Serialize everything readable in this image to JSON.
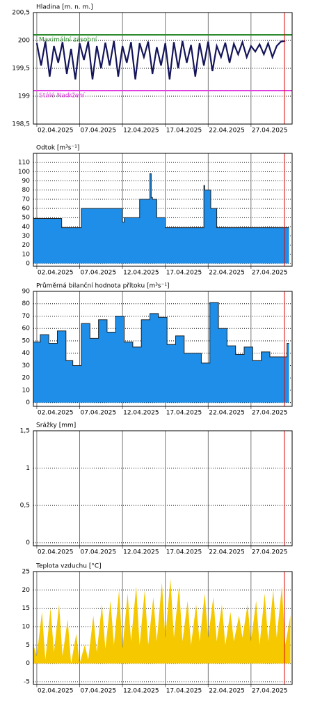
{
  "chart_data": [
    {
      "type": "line",
      "title": "Hladina [m. n. m.]",
      "color": "#14145a",
      "x": [
        2,
        2.5,
        3,
        3.5,
        4,
        4.5,
        5,
        5.5,
        6,
        6.5,
        7,
        7.5,
        8,
        8.5,
        9,
        9.5,
        10,
        10.5,
        11,
        11.5,
        12,
        12.5,
        13,
        13.5,
        14,
        14.5,
        15,
        15.5,
        16,
        16.5,
        17,
        17.5,
        18,
        18.5,
        19,
        19.5,
        20,
        20.5,
        21,
        21.5,
        22,
        22.5,
        23,
        23.5,
        24,
        24.5,
        25,
        25.5,
        26,
        26.5,
        27,
        27.5,
        28,
        28.5,
        29,
        29.5,
        30,
        30.5,
        31
      ],
      "values": [
        199.95,
        199.55,
        199.98,
        199.35,
        199.9,
        199.6,
        199.97,
        199.4,
        199.85,
        199.3,
        199.95,
        199.65,
        199.98,
        199.3,
        199.9,
        199.5,
        199.96,
        199.55,
        199.99,
        199.35,
        199.9,
        199.6,
        199.97,
        199.3,
        199.95,
        199.7,
        199.98,
        199.4,
        199.88,
        199.55,
        199.95,
        199.3,
        199.97,
        199.5,
        199.99,
        199.6,
        199.92,
        199.35,
        199.95,
        199.55,
        199.98,
        199.45,
        199.9,
        199.7,
        199.96,
        199.6,
        199.94,
        199.75,
        199.97,
        199.7,
        199.9,
        199.8,
        199.93,
        199.75,
        199.95,
        199.7,
        199.9,
        199.98,
        199.99
      ],
      "reference_lines": [
        {
          "value": 200.1,
          "label": "Maximální zásobní",
          "color": "#2e8b2e"
        },
        {
          "value": 199.1,
          "label": "Stálé Nadržení",
          "color": "#e040e0"
        }
      ],
      "xlim": [
        1.6,
        31.8
      ],
      "xticks": [
        {
          "value": 2,
          "label": "02.04.2025"
        },
        {
          "value": 7,
          "label": "07.04.2025"
        },
        {
          "value": 12,
          "label": "12.04.2025"
        },
        {
          "value": 17,
          "label": "17.04.2025"
        },
        {
          "value": 22,
          "label": "22.04.2025"
        },
        {
          "value": 27,
          "label": "27.04.2025"
        }
      ],
      "ylim": [
        198.5,
        200.5
      ],
      "yticks": [
        {
          "value": 198.5,
          "label": "198,5"
        },
        199,
        {
          "value": 199.5,
          "label": "199,5"
        },
        200,
        {
          "value": 200.5,
          "label": "200,5"
        }
      ],
      "grid": true,
      "marker_x": 30.9,
      "marker_color": "#e00000"
    },
    {
      "type": "step",
      "title": "Odtok [m³s⁻¹]",
      "color": "#1e8ee8",
      "x": [
        1.6,
        4.9,
        7.2,
        12,
        12.2,
        14,
        15.2,
        15.35,
        15.5,
        16,
        17,
        21.3,
        21.5,
        21.6,
        22.3,
        23,
        31.2
      ],
      "values": [
        49,
        39,
        60,
        45,
        50,
        70,
        98,
        72,
        70,
        50,
        39,
        39,
        85,
        80,
        60,
        39,
        39
      ],
      "xlim": [
        1.6,
        31.8
      ],
      "xticks": [
        {
          "value": 2,
          "label": "02.04.2025"
        },
        {
          "value": 7,
          "label": "07.04.2025"
        },
        {
          "value": 12,
          "label": "12.04.2025"
        },
        {
          "value": 17,
          "label": "17.04.2025"
        },
        {
          "value": 22,
          "label": "22.04.2025"
        },
        {
          "value": 27,
          "label": "27.04.2025"
        }
      ],
      "ylim": [
        -3,
        120
      ],
      "yticks": [
        0,
        10,
        20,
        30,
        40,
        50,
        60,
        70,
        80,
        90,
        100,
        110
      ],
      "grid": true,
      "marker_x": 30.9,
      "marker_color": "#e00000"
    },
    {
      "type": "step",
      "title": "Průměrná bilanční hodnota přítoku   [m³s⁻¹]",
      "color": "#1e8ee8",
      "x": [
        1.6,
        2.4,
        3.4,
        4.4,
        5.4,
        6.2,
        7.2,
        8.2,
        9.2,
        10.2,
        11.2,
        12.2,
        13.2,
        14.2,
        15.2,
        16.2,
        17.2,
        18.2,
        19.2,
        20.2,
        21.2,
        22.2,
        23.2,
        24.2,
        25.2,
        26.2,
        27.2,
        28.2,
        29.2,
        31.2
      ],
      "values": [
        49,
        55,
        48,
        58,
        34,
        30,
        64,
        52,
        67,
        57,
        70,
        49,
        45,
        67,
        72,
        69,
        47,
        54,
        40,
        40,
        32,
        81,
        60,
        46,
        39,
        45,
        34,
        41,
        37,
        48
      ],
      "xlim": [
        1.6,
        31.8
      ],
      "xticks": [
        {
          "value": 2,
          "label": "02.04.2025"
        },
        {
          "value": 7,
          "label": "07.04.2025"
        },
        {
          "value": 12,
          "label": "12.04.2025"
        },
        {
          "value": 17,
          "label": "17.04.2025"
        },
        {
          "value": 22,
          "label": "22.04.2025"
        },
        {
          "value": 27,
          "label": "27.04.2025"
        }
      ],
      "ylim": [
        -3,
        90
      ],
      "yticks": [
        0,
        10,
        20,
        30,
        40,
        50,
        60,
        70,
        80,
        90
      ],
      "grid": true,
      "marker_x": 30.9,
      "marker_color": "#e00000"
    },
    {
      "type": "line",
      "title": "Srážky [mm]",
      "color": "#1e8ee8",
      "x": [],
      "values": [],
      "xlim": [
        1.6,
        31.8
      ],
      "xticks": [
        {
          "value": 2,
          "label": "02.04.2025"
        },
        {
          "value": 7,
          "label": "07.04.2025"
        },
        {
          "value": 12,
          "label": "12.04.2025"
        },
        {
          "value": 17,
          "label": "17.04.2025"
        },
        {
          "value": 22,
          "label": "22.04.2025"
        },
        {
          "value": 27,
          "label": "27.04.2025"
        }
      ],
      "ylim": [
        -0.04,
        1.5
      ],
      "yticks": [
        0,
        {
          "value": 0.5,
          "label": "0,5"
        },
        1,
        {
          "value": 1.5,
          "label": "1,5"
        }
      ],
      "grid": true,
      "marker_x": 30.9,
      "marker_color": "#e00000"
    },
    {
      "type": "area",
      "title": "Teplota vzduchu [°C]",
      "color": "#f5c800",
      "x": [
        1.6,
        2,
        2.6,
        3,
        3.6,
        4,
        4.6,
        5,
        5.6,
        6,
        6.6,
        7,
        7.6,
        8,
        8.6,
        9,
        9.6,
        10,
        10.6,
        11,
        11.6,
        12,
        12.6,
        13,
        13.6,
        14,
        14.6,
        15,
        15.6,
        16,
        16.6,
        17,
        17.6,
        18,
        18.6,
        19,
        19.6,
        20,
        20.6,
        21,
        21.6,
        22,
        22.6,
        23,
        23.6,
        24,
        24.6,
        25,
        25.6,
        26,
        26.6,
        27,
        27.6,
        28,
        28.6,
        29,
        29.6,
        30,
        30.6,
        31,
        31.6
      ],
      "values": [
        5,
        2,
        14,
        1,
        15,
        3,
        16,
        2,
        12,
        0,
        8,
        0,
        5,
        1,
        13,
        3,
        16,
        4,
        17,
        5,
        20,
        4,
        19,
        6,
        21,
        5,
        20,
        5,
        18,
        6,
        22,
        7,
        23,
        7,
        21,
        6,
        17,
        5,
        16,
        6,
        19,
        7,
        18,
        6,
        16,
        5,
        14,
        6,
        13,
        7,
        16,
        6,
        17,
        5,
        19,
        6,
        20,
        7,
        21,
        5,
        13
      ],
      "xlim": [
        1.6,
        31.8
      ],
      "xticks": [
        {
          "value": 2,
          "label": "02.04.2025"
        },
        {
          "value": 7,
          "label": "07.04.2025"
        },
        {
          "value": 12,
          "label": "12.04.2025"
        },
        {
          "value": 17,
          "label": "17.04.2025"
        },
        {
          "value": 22,
          "label": "22.04.2025"
        },
        {
          "value": 27,
          "label": "27.04.2025"
        }
      ],
      "ylim": [
        -5.75,
        25
      ],
      "yticks": [
        -5,
        0,
        5,
        10,
        15,
        20,
        25
      ],
      "grid": true,
      "marker_x": 30.9,
      "marker_color": "#e00000"
    }
  ]
}
